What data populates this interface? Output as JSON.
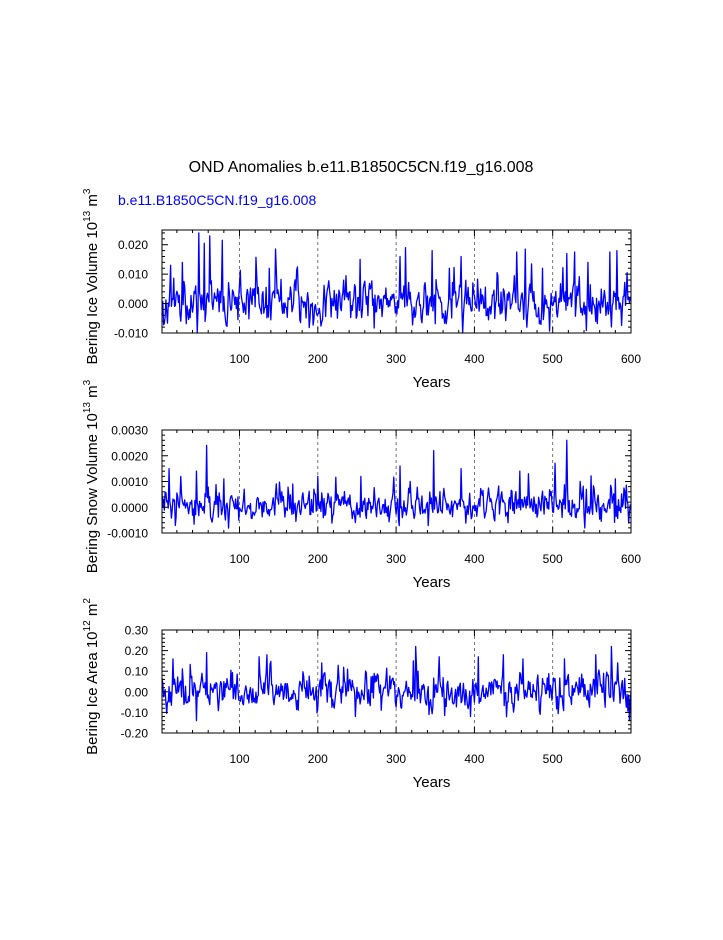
{
  "figure": {
    "title": "OND Anomalies b.e11.B1850C5CN.f19_g16.008",
    "legend_label": "b.e11.B1850C5CN.f19_g16.008",
    "line_color": "#0000ff",
    "axis_color": "#000000",
    "gridline_color": "#555555"
  },
  "chart_data": [
    {
      "type": "line",
      "id": "ice-volume",
      "ylabel": "Bering Ice Volume 10¹³ m³",
      "ylabel_main": "Bering Ice Volume 10",
      "ylabel_exp": "13",
      "ylabel_unit": " m",
      "ylabel_unit_exp": "3",
      "xlabel": "Years",
      "xlim": [
        1,
        600
      ],
      "ylim": [
        -0.01,
        0.025
      ],
      "xticks": [
        100,
        200,
        300,
        400,
        500,
        600
      ],
      "xtick_labels": [
        "100",
        "200",
        "300",
        "400",
        "500",
        "600"
      ],
      "yticks": [
        -0.01,
        0.0,
        0.01,
        0.02
      ],
      "ytick_labels": [
        "-0.010",
        "0.000",
        "0.010",
        "0.020"
      ],
      "grid_x": [
        100,
        200,
        300,
        400,
        500
      ],
      "approx_range": [
        -0.01,
        0.025
      ],
      "noise_sigma": 0.0045,
      "noise_seed": 11,
      "peaks": [
        [
          48,
          0.024
        ],
        [
          55,
          0.0205
        ],
        [
          62,
          0.023
        ],
        [
          78,
          0.0215
        ],
        [
          27,
          0.014
        ],
        [
          12,
          0.013
        ],
        [
          254,
          0.015
        ],
        [
          305,
          0.016
        ],
        [
          312,
          0.019
        ],
        [
          346,
          0.018
        ],
        [
          368,
          0.012
        ],
        [
          383,
          0.016
        ],
        [
          454,
          0.0175
        ],
        [
          465,
          0.0185
        ],
        [
          473,
          0.0135
        ],
        [
          487,
          0.012
        ],
        [
          518,
          0.017
        ],
        [
          528,
          0.0175
        ],
        [
          545,
          0.014
        ],
        [
          573,
          0.0175
        ],
        [
          582,
          0.018
        ],
        [
          595,
          0.0105
        ]
      ]
    },
    {
      "type": "line",
      "id": "snow-volume",
      "ylabel": "Bering Snow Volume 10¹³ m³",
      "ylabel_main": "Bering Snow Volume 10",
      "ylabel_exp": "13",
      "ylabel_unit": " m",
      "ylabel_unit_exp": "3",
      "xlabel": "Years",
      "xlim": [
        1,
        600
      ],
      "ylim": [
        -0.001,
        0.003
      ],
      "xticks": [
        100,
        200,
        300,
        400,
        500,
        600
      ],
      "xtick_labels": [
        "100",
        "200",
        "300",
        "400",
        "500",
        "600"
      ],
      "yticks": [
        -0.001,
        0.0,
        0.001,
        0.002,
        0.003
      ],
      "ytick_labels": [
        "-0.0010",
        "0.0000",
        "0.0010",
        "0.0020",
        "0.0030"
      ],
      "grid_x": [
        100,
        200,
        300,
        400,
        500
      ],
      "approx_range": [
        -0.001,
        0.0026
      ],
      "noise_sigma": 0.00038,
      "noise_seed": 23,
      "peaks": [
        [
          10,
          0.0015
        ],
        [
          25,
          0.0012
        ],
        [
          45,
          0.0014
        ],
        [
          58,
          0.0024
        ],
        [
          80,
          0.0011
        ],
        [
          168,
          0.0009
        ],
        [
          200,
          0.0012
        ],
        [
          255,
          0.0012
        ],
        [
          305,
          0.0016
        ],
        [
          348,
          0.0022
        ],
        [
          383,
          0.0015
        ],
        [
          458,
          0.0014
        ],
        [
          469,
          0.0013
        ],
        [
          518,
          0.0026
        ],
        [
          580,
          0.0011
        ]
      ]
    },
    {
      "type": "line",
      "id": "ice-area",
      "ylabel": "Bering Ice Area 10¹² m²",
      "ylabel_main": "Bering Ice Area 10",
      "ylabel_exp": "12",
      "ylabel_unit": " m",
      "ylabel_unit_exp": "2",
      "xlabel": "Years",
      "xlim": [
        1,
        600
      ],
      "ylim": [
        -0.2,
        0.3
      ],
      "xticks": [
        100,
        200,
        300,
        400,
        500,
        600
      ],
      "xtick_labels": [
        "100",
        "200",
        "300",
        "400",
        "500",
        "600"
      ],
      "yticks": [
        -0.2,
        -0.1,
        0.0,
        0.1,
        0.2,
        0.3
      ],
      "ytick_labels": [
        "-0.20",
        "-0.10",
        "0.00",
        "0.10",
        "0.20",
        "0.30"
      ],
      "grid_x": [
        100,
        200,
        300,
        400,
        500
      ],
      "approx_range": [
        -0.15,
        0.22
      ],
      "noise_sigma": 0.055,
      "noise_seed": 37,
      "peaks": [
        [
          15,
          0.16
        ],
        [
          58,
          0.19
        ],
        [
          125,
          0.17
        ],
        [
          135,
          0.18
        ],
        [
          205,
          0.14
        ],
        [
          322,
          0.15
        ],
        [
          355,
          0.17
        ],
        [
          405,
          0.17
        ],
        [
          437,
          0.18
        ],
        [
          462,
          0.16
        ],
        [
          515,
          0.16
        ],
        [
          555,
          0.18
        ],
        [
          575,
          0.22
        ],
        [
          583,
          0.14
        ]
      ],
      "troughs": [
        [
          45,
          -0.14
        ],
        [
          248,
          -0.12
        ],
        [
          395,
          -0.12
        ],
        [
          598,
          -0.14
        ]
      ]
    }
  ]
}
